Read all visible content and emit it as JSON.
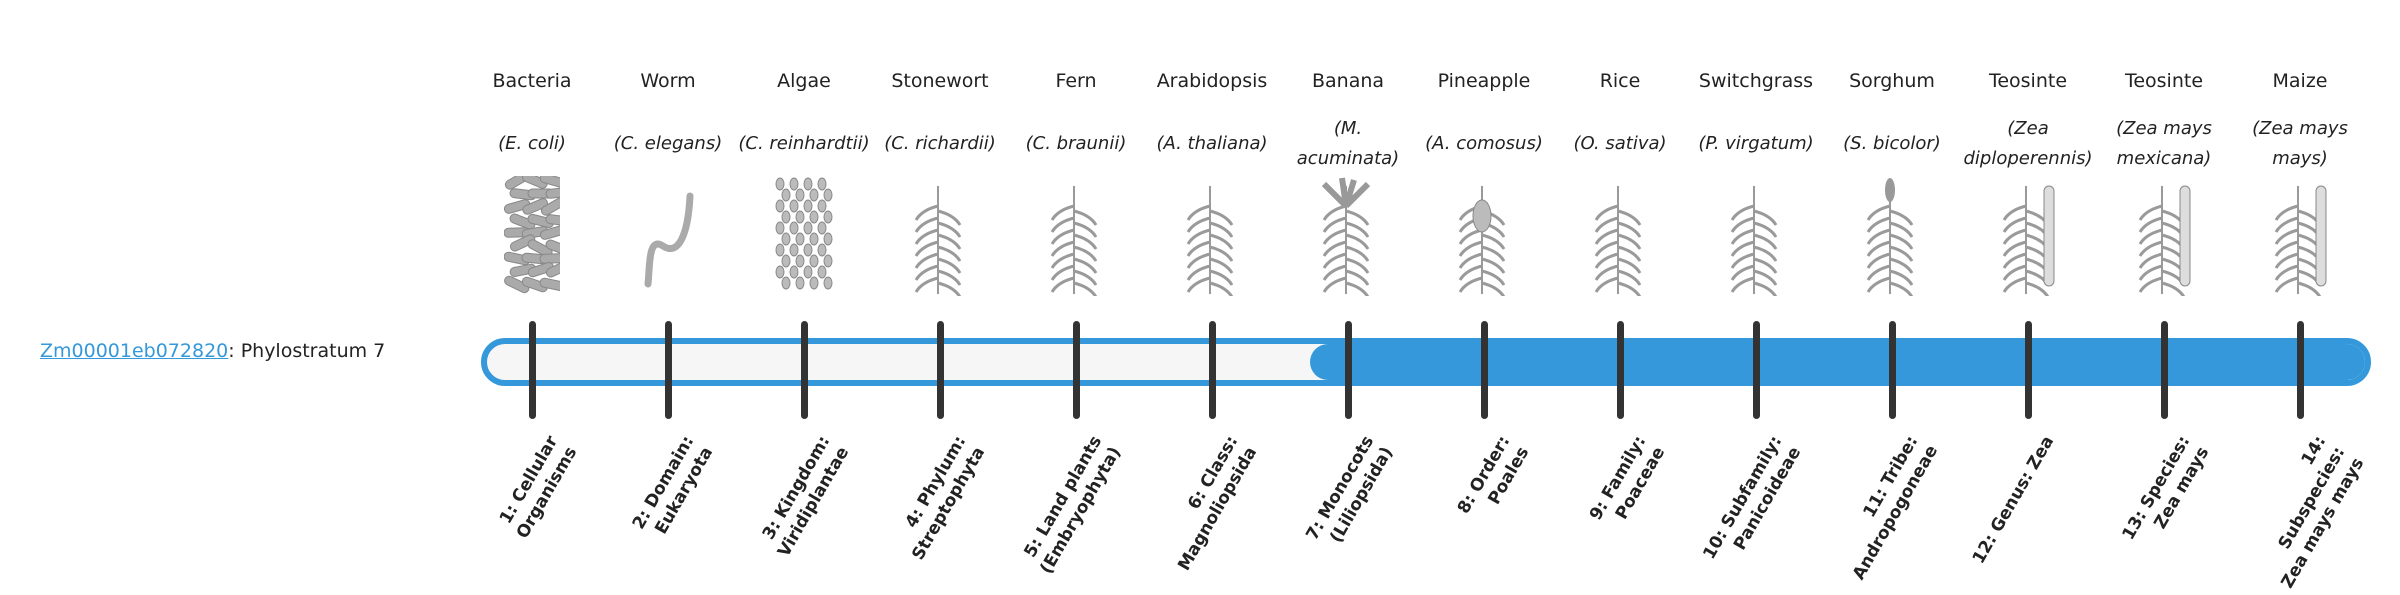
{
  "gene": {
    "id": "Zm00001eb072820",
    "suffix": ": Phylostratum 7"
  },
  "phylostratum": 7,
  "accent_color": "#3498db",
  "organisms": [
    {
      "common": "Bacteria",
      "species": "(E. coli)",
      "icon": "bacteria-icon",
      "stratum": "1: Cellular Organisms"
    },
    {
      "common": "Worm",
      "species": "(C. elegans)",
      "icon": "worm-icon",
      "stratum": "2: Domain: Eukaryota"
    },
    {
      "common": "Algae",
      "species": "(C. reinhardtii)",
      "icon": "algae-icon",
      "stratum": "3: Kingdom: Viridiplantae"
    },
    {
      "common": "Stonewort",
      "species": "(C. richardii)",
      "icon": "stonewort-icon",
      "stratum": "4: Phylum: Streptophyta"
    },
    {
      "common": "Fern",
      "species": "(C. braunii)",
      "icon": "fern-icon",
      "stratum": "5: Land plants (Embryophyta)"
    },
    {
      "common": "Arabidopsis",
      "species": "(A. thaliana)",
      "icon": "arabidopsis-icon",
      "stratum": "6: Class: Magnoliopsida"
    },
    {
      "common": "Banana",
      "species": "(M. acuminata)",
      "icon": "banana-icon",
      "stratum": "7: Monocots (Liliopsida)"
    },
    {
      "common": "Pineapple",
      "species": "(A. comosus)",
      "icon": "pineapple-icon",
      "stratum": "8: Order: Poales"
    },
    {
      "common": "Rice",
      "species": "(O. sativa)",
      "icon": "rice-icon",
      "stratum": "9: Family: Poaceae"
    },
    {
      "common": "Switchgrass",
      "species": "(P. virgatum)",
      "icon": "switchgrass-icon",
      "stratum": "10: Subfamily: Panicoideae"
    },
    {
      "common": "Sorghum",
      "species": "(S. bicolor)",
      "icon": "sorghum-icon",
      "stratum": "11: Tribe: Andropogoneae"
    },
    {
      "common": "Teosinte",
      "species": "(Zea diploperennis)",
      "icon": "teosinte-icon",
      "stratum": "12: Genus: Zea"
    },
    {
      "common": "Teosinte",
      "species": "(Zea mays mexicana)",
      "icon": "teosinte-icon",
      "stratum": "13: Species: Zea mays"
    },
    {
      "common": "Maize",
      "species": "(Zea mays mays)",
      "icon": "maize-icon",
      "stratum": "14: Subspecies: Zea mays mays"
    }
  ]
}
